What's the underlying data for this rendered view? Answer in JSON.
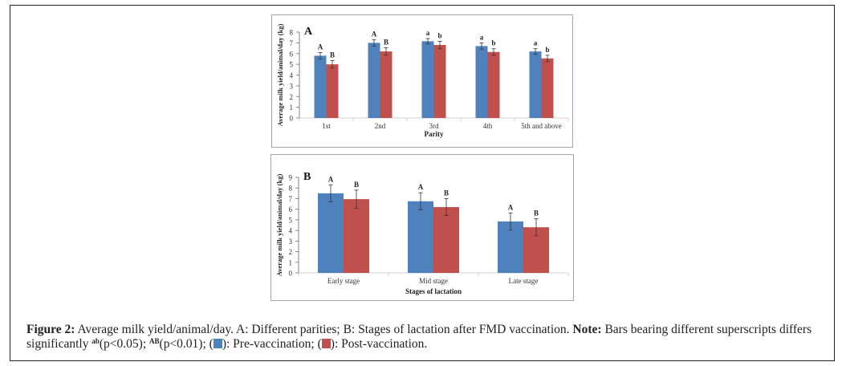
{
  "caption": {
    "figure_label": "Figure 2:",
    "text_1": " Average milk yield/animal/day. A: Different parities; B: Stages of lactation after FMD vaccination. ",
    "note_label": "Note:",
    "text_2": " Bars bearing different superscripts differs significantly ",
    "sup_ab": "ab",
    "p_ab": "(p<0.05);  ",
    "sup_AB": "AB",
    "p_AB": "(p<0.01); (",
    "pre_text": "): Pre-vaccination; (",
    "post_text": "): Post-vaccination."
  },
  "colors": {
    "pre_vaccination": "#4F81BD",
    "post_vaccination": "#C0504D"
  },
  "chart_data": [
    {
      "type": "bar",
      "panel_label": "A",
      "title": "",
      "xlabel": "Parity",
      "ylabel": "Average milk yield/animal/day (kg)",
      "ylim": [
        0,
        8
      ],
      "yticks": [
        0,
        1,
        2,
        3,
        4,
        5,
        6,
        7,
        8
      ],
      "grid": false,
      "categories": [
        "1st",
        "2nd",
        "3rd",
        "4th",
        "5th and above"
      ],
      "series": [
        {
          "name": "Pre-vaccination",
          "values": [
            5.8,
            7.0,
            7.15,
            6.7,
            6.2
          ],
          "errors": [
            0.3,
            0.3,
            0.25,
            0.3,
            0.25
          ],
          "labels": [
            "A",
            "A",
            "a",
            "a",
            "a"
          ]
        },
        {
          "name": "Post-vaccination",
          "values": [
            5.0,
            6.2,
            6.8,
            6.15,
            5.55
          ],
          "errors": [
            0.35,
            0.35,
            0.35,
            0.3,
            0.3
          ],
          "labels": [
            "B",
            "B",
            "b",
            "b",
            "b"
          ]
        }
      ]
    },
    {
      "type": "bar",
      "panel_label": "B",
      "title": "",
      "xlabel": "Stages of lactation",
      "ylabel": "Average milk yield/animal/day (kg)",
      "ylim": [
        0,
        9
      ],
      "yticks": [
        0,
        1,
        2,
        3,
        4,
        5,
        6,
        7,
        8,
        9
      ],
      "grid": false,
      "categories": [
        "Early stage",
        "Mid stage",
        "Late stage"
      ],
      "series": [
        {
          "name": "Pre-vaccination",
          "values": [
            7.5,
            6.75,
            4.85
          ],
          "errors": [
            0.8,
            0.8,
            0.8
          ],
          "labels": [
            "A",
            "A",
            "A"
          ]
        },
        {
          "name": "Post-vaccination",
          "values": [
            6.95,
            6.2,
            4.3
          ],
          "errors": [
            0.85,
            0.8,
            0.8
          ],
          "labels": [
            "B",
            "B",
            "B"
          ]
        }
      ]
    }
  ]
}
